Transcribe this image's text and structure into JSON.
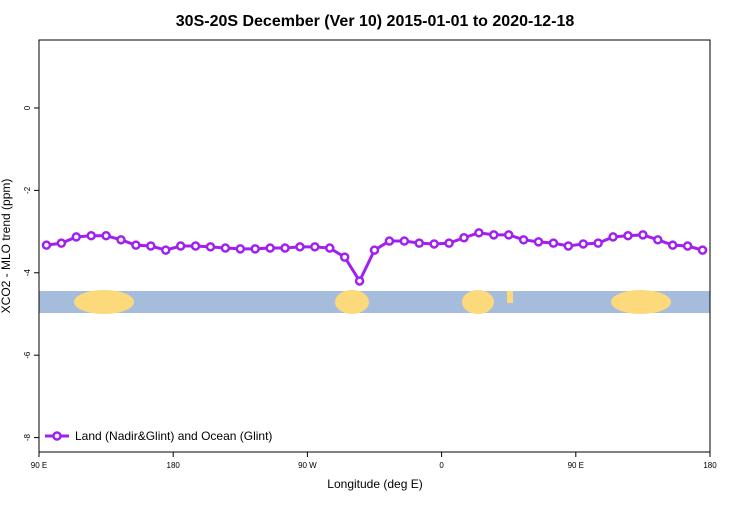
{
  "chart_data": {
    "type": "line",
    "title": "30S-20S December (Ver 10)   2015-01-01 to 2020-12-18",
    "x_label": "Longitude (deg E)",
    "y_label": "XCO2 - MLO trend (ppm)",
    "x": [
      95,
      105,
      115,
      125,
      135,
      145,
      155,
      165,
      175,
      185,
      195,
      205,
      215,
      225,
      235,
      245,
      255,
      265,
      275,
      285,
      295,
      305,
      315,
      325,
      335,
      345,
      355,
      365,
      375,
      385,
      395,
      405,
      415,
      425,
      435,
      445,
      455,
      465,
      475,
      485,
      495,
      505,
      515,
      525,
      535
    ],
    "series": [
      {
        "name": "Land (Nadir&Glint) and Ocean (Glint)",
        "color": "#a020f0",
        "values": [
          -3.33,
          -3.28,
          -3.13,
          -3.1,
          -3.1,
          -3.2,
          -3.33,
          -3.35,
          -3.45,
          -3.35,
          -3.35,
          -3.37,
          -3.4,
          -3.42,
          -3.42,
          -3.4,
          -3.4,
          -3.37,
          -3.37,
          -3.4,
          -3.62,
          -4.2,
          -3.45,
          -3.23,
          -3.23,
          -3.28,
          -3.3,
          -3.28,
          -3.15,
          -3.03,
          -3.08,
          -3.08,
          -3.2,
          -3.25,
          -3.28,
          -3.35,
          -3.3,
          -3.28,
          -3.13,
          -3.1,
          -3.08,
          -3.2,
          -3.33,
          -3.35,
          -3.45
        ]
      }
    ],
    "xlim": [
      90,
      540
    ],
    "xticks": [
      {
        "value": 90,
        "label": "90 E"
      },
      180,
      {
        "value": 270,
        "label": "90 W"
      },
      {
        "value": 360,
        "label": "0"
      },
      {
        "value": 450,
        "label": "90 E"
      },
      {
        "value": 540,
        "label": "180"
      }
    ],
    "ylim": [
      -8.35,
      1.65
    ],
    "yticks": [
      0,
      -2,
      -4,
      -6,
      -8
    ],
    "legend": "bottom-left"
  }
}
